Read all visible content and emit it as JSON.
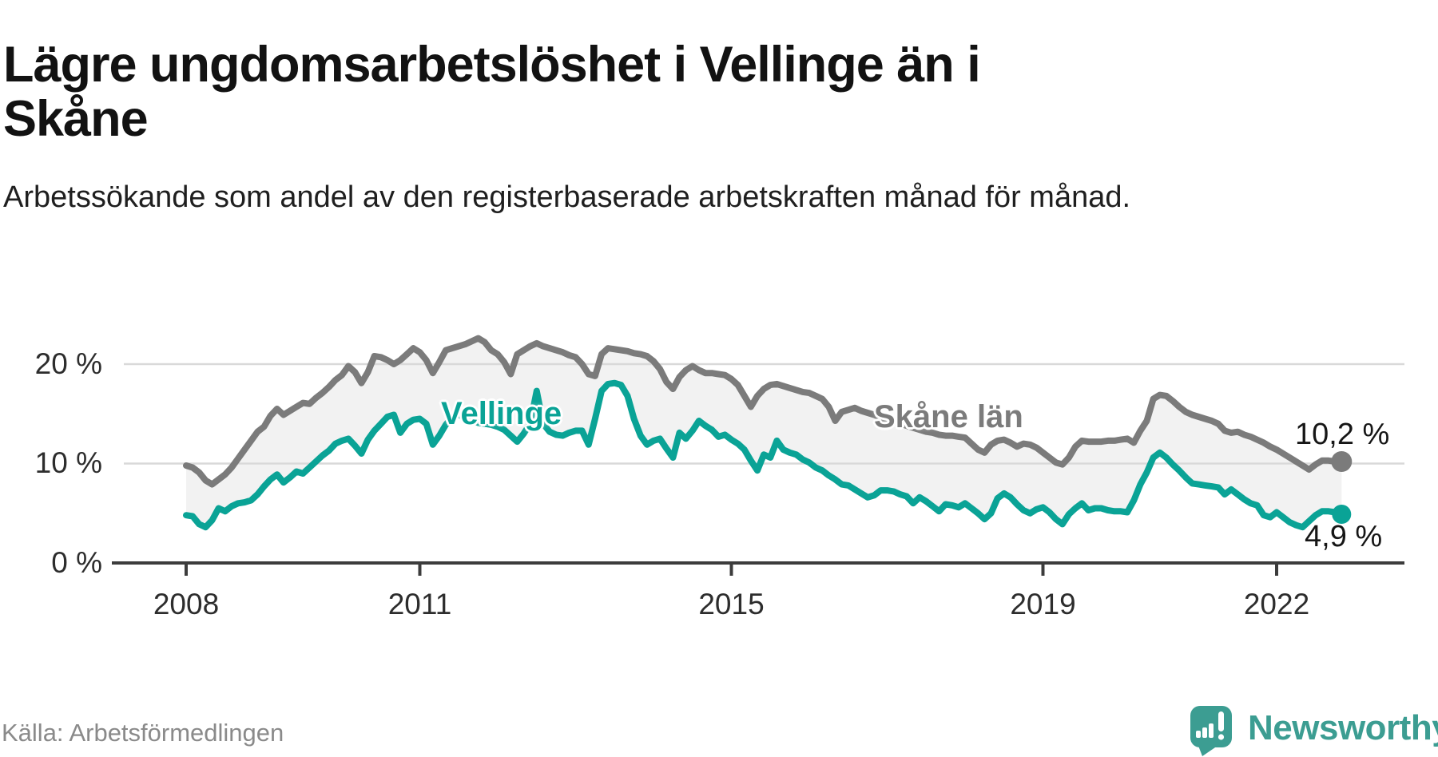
{
  "title": "Lägre ungdomsarbetslöshet i Vellinge än i Skåne",
  "subtitle": "Arbetssökande som andel av den registerbaserade arbetskraften månad för månad.",
  "source": "Källa: Arbetsförmedlingen",
  "logo": {
    "text": "Newsworthy",
    "color": "#3c9d92",
    "icon": "speech-bubble-bar-chart-icon"
  },
  "chart_data": {
    "type": "line",
    "title": "Lägre ungdomsarbetslöshet i Vellinge än i Skåne",
    "xlabel": "",
    "ylabel": "",
    "unit": "%",
    "frequency": "monthly",
    "x_start": "2008-01",
    "x_end": "2022-11",
    "base_year": 2008,
    "ylim": [
      0,
      24
    ],
    "grid": "horizontal",
    "grid_color": "#d9d9d9",
    "axis_color": "#3c3c3c",
    "band_color": "#f2f2f2",
    "y_axis": [
      {
        "label": "20 %",
        "value": 20
      },
      {
        "label": "10 %",
        "value": 10
      },
      {
        "label": "0 %",
        "value": 0
      }
    ],
    "x_axis": [
      {
        "label": "2008",
        "year": 2008
      },
      {
        "label": "2011",
        "year": 2011
      },
      {
        "label": "2015",
        "year": 2015
      },
      {
        "label": "2019",
        "year": 2019
      },
      {
        "label": "2022",
        "year": 2022
      }
    ],
    "series": [
      {
        "key": "skane-lan",
        "name": "Skåne län",
        "color": "#7b7b7b",
        "end_label": "10,2 %",
        "end_value": 10.2,
        "values": [
          9.8,
          9.6,
          9.1,
          8.3,
          7.9,
          8.4,
          8.9,
          9.6,
          10.5,
          11.4,
          12.3,
          13.2,
          13.7,
          14.8,
          15.5,
          14.9,
          15.3,
          15.7,
          16.1,
          16.0,
          16.6,
          17.1,
          17.7,
          18.4,
          18.9,
          19.8,
          19.2,
          18.1,
          19.2,
          20.8,
          20.7,
          20.4,
          20.0,
          20.4,
          21.0,
          21.6,
          21.2,
          20.4,
          19.1,
          20.2,
          21.4,
          21.6,
          21.8,
          22.0,
          22.3,
          22.6,
          22.2,
          21.4,
          21.0,
          20.2,
          19.0,
          21.0,
          21.4,
          21.8,
          22.1,
          21.8,
          21.6,
          21.4,
          21.2,
          20.9,
          20.7,
          20.0,
          19.0,
          18.8,
          21.0,
          21.6,
          21.5,
          21.4,
          21.3,
          21.1,
          21.0,
          20.8,
          20.3,
          19.5,
          18.2,
          17.5,
          18.7,
          19.4,
          19.8,
          19.4,
          19.1,
          19.1,
          19.0,
          18.9,
          18.5,
          17.9,
          16.8,
          15.7,
          16.8,
          17.5,
          17.9,
          18.0,
          17.8,
          17.6,
          17.4,
          17.2,
          17.1,
          16.8,
          16.5,
          15.7,
          14.3,
          15.2,
          15.4,
          15.6,
          15.3,
          15.1,
          14.9,
          14.6,
          14.4,
          14.2,
          14.0,
          13.8,
          13.6,
          13.4,
          13.2,
          13.1,
          12.9,
          12.8,
          12.8,
          12.7,
          12.6,
          12.0,
          11.4,
          11.1,
          11.9,
          12.3,
          12.4,
          12.1,
          11.7,
          12.0,
          11.9,
          11.6,
          11.1,
          10.6,
          10.1,
          9.9,
          10.6,
          11.7,
          12.3,
          12.2,
          12.2,
          12.2,
          12.3,
          12.3,
          12.4,
          12.5,
          12.1,
          13.3,
          14.3,
          16.5,
          16.9,
          16.8,
          16.3,
          15.7,
          15.2,
          14.9,
          14.7,
          14.5,
          14.3,
          14.0,
          13.3,
          13.1,
          13.2,
          12.9,
          12.7,
          12.4,
          12.1,
          11.7,
          11.4,
          11.0,
          10.6,
          10.2,
          9.8,
          9.4,
          9.9,
          10.3,
          10.3,
          10.2,
          10.2
        ]
      },
      {
        "key": "vellinge",
        "name": "Vellinge",
        "color": "#0aa396",
        "end_label": "4,9 %",
        "end_value": 4.9,
        "values": [
          4.8,
          4.7,
          3.9,
          3.6,
          4.3,
          5.5,
          5.2,
          5.7,
          6.0,
          6.1,
          6.3,
          6.9,
          7.7,
          8.4,
          8.9,
          8.1,
          8.6,
          9.2,
          9.0,
          9.6,
          10.2,
          10.8,
          11.3,
          12.0,
          12.3,
          12.5,
          11.8,
          11.0,
          12.4,
          13.3,
          14.0,
          14.7,
          14.9,
          13.1,
          14.0,
          14.4,
          14.5,
          14.0,
          11.9,
          12.8,
          13.9,
          14.7,
          14.9,
          14.6,
          14.4,
          14.1,
          14.0,
          13.9,
          13.7,
          13.4,
          12.8,
          12.2,
          13.0,
          14.0,
          17.3,
          14.0,
          13.2,
          12.9,
          12.8,
          13.1,
          13.3,
          13.3,
          11.9,
          14.5,
          17.3,
          18.0,
          18.1,
          17.9,
          16.8,
          14.5,
          12.8,
          11.9,
          12.3,
          12.5,
          11.5,
          10.6,
          13.1,
          12.5,
          13.3,
          14.3,
          13.8,
          13.4,
          12.7,
          12.9,
          12.4,
          12.0,
          11.4,
          10.3,
          9.3,
          10.9,
          10.6,
          12.3,
          11.4,
          11.1,
          10.9,
          10.4,
          10.1,
          9.6,
          9.3,
          8.8,
          8.4,
          7.9,
          7.8,
          7.4,
          7.0,
          6.6,
          6.8,
          7.3,
          7.3,
          7.2,
          6.9,
          6.7,
          6.0,
          6.6,
          6.2,
          5.7,
          5.2,
          5.9,
          5.8,
          5.6,
          6.0,
          5.5,
          5.0,
          4.4,
          5.0,
          6.5,
          7.0,
          6.6,
          5.9,
          5.3,
          5.0,
          5.4,
          5.6,
          5.1,
          4.4,
          3.9,
          4.9,
          5.5,
          6.0,
          5.3,
          5.5,
          5.5,
          5.3,
          5.2,
          5.2,
          5.1,
          6.3,
          7.9,
          9.1,
          10.6,
          11.1,
          10.6,
          9.9,
          9.3,
          8.6,
          8.0,
          7.9,
          7.8,
          7.7,
          7.6,
          6.9,
          7.4,
          6.9,
          6.4,
          6.0,
          5.8,
          4.8,
          4.6,
          5.1,
          4.6,
          4.1,
          3.8,
          3.6,
          4.2,
          4.8,
          5.2,
          5.2,
          5.1,
          4.9
        ]
      }
    ]
  }
}
